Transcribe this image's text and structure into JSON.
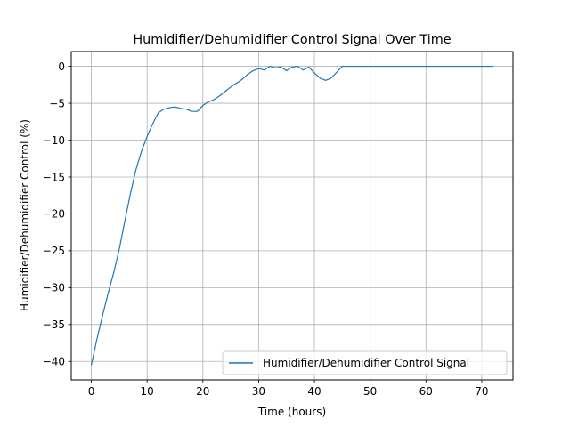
{
  "colors": {
    "series": "#1f77b4",
    "grid": "#b0b0b0",
    "axis": "#000000",
    "legend_border": "#cccccc",
    "background": "#ffffff"
  },
  "chart_data": {
    "type": "line",
    "title": "Humidifier/Dehumidifier Control Signal Over Time",
    "xlabel": "Time (hours)",
    "ylabel": "Humidifier/Dehumidifier Control (%)",
    "xlim": [
      -3.6,
      75.6
    ],
    "ylim": [
      -42.5,
      2.0
    ],
    "xticks": [
      0,
      10,
      20,
      30,
      40,
      50,
      60,
      70
    ],
    "xtick_labels": [
      "0",
      "10",
      "20",
      "30",
      "40",
      "50",
      "60",
      "70"
    ],
    "yticks": [
      0,
      -5,
      -10,
      -15,
      -20,
      -25,
      -30,
      -35,
      -40
    ],
    "ytick_labels": [
      "0",
      "−5",
      "−10",
      "−15",
      "−20",
      "−25",
      "−30",
      "−35",
      "−40"
    ],
    "grid": true,
    "legend_position": "lower-right",
    "series": [
      {
        "name": "Humidifier/Dehumidifier Control Signal",
        "x": [
          0,
          1,
          2,
          3,
          4,
          5,
          6,
          7,
          8,
          9,
          10,
          11,
          12,
          13,
          14,
          15,
          16,
          17,
          18,
          19,
          20,
          21,
          22,
          23,
          24,
          25,
          26,
          27,
          28,
          29,
          30,
          31,
          32,
          33,
          34,
          35,
          36,
          37,
          38,
          39,
          40,
          41,
          42,
          43,
          44,
          45,
          46,
          50,
          55,
          60,
          65,
          70,
          72
        ],
        "y": [
          -40.5,
          -37.0,
          -33.8,
          -30.8,
          -28.0,
          -24.8,
          -21.0,
          -17.3,
          -14.0,
          -11.5,
          -9.5,
          -7.8,
          -6.3,
          -5.8,
          -5.6,
          -5.5,
          -5.7,
          -5.8,
          -6.1,
          -6.1,
          -5.3,
          -4.8,
          -4.5,
          -4.0,
          -3.4,
          -2.8,
          -2.3,
          -1.8,
          -1.1,
          -0.6,
          -0.3,
          -0.5,
          0.0,
          -0.2,
          -0.1,
          -0.6,
          -0.1,
          0.0,
          -0.5,
          -0.1,
          -0.9,
          -1.6,
          -1.9,
          -1.6,
          -0.8,
          0.0,
          0.0,
          0.0,
          0.0,
          0.0,
          0.0,
          0.0,
          0.0
        ]
      }
    ]
  }
}
